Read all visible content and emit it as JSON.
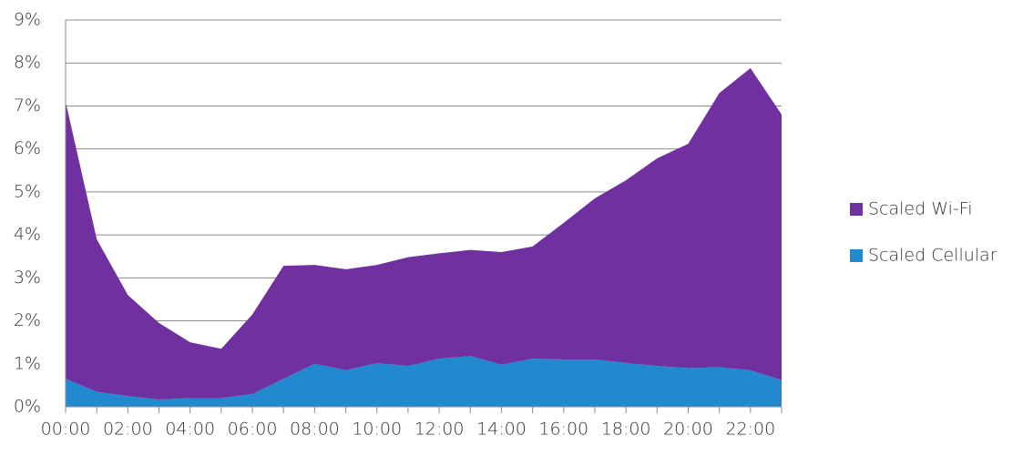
{
  "chart_data": {
    "type": "stacked_area",
    "categories": [
      "00:00",
      null,
      "02:00",
      null,
      "04:00",
      null,
      "06:00",
      null,
      "08:00",
      null,
      "10:00",
      null,
      "12:00",
      null,
      "14:00",
      null,
      "16:00",
      null,
      "18:00",
      null,
      "20:00",
      null,
      "22:00",
      null
    ],
    "series": [
      {
        "name": "Scaled Wi-Fi",
        "color": "#7030a0",
        "values": [
          6.45,
          3.55,
          2.35,
          1.78,
          1.3,
          1.15,
          1.85,
          2.63,
          2.3,
          2.35,
          2.28,
          2.53,
          2.45,
          2.47,
          2.62,
          2.61,
          3.18,
          3.75,
          4.25,
          4.83,
          5.22,
          6.38,
          7.03,
          6.18
        ]
      },
      {
        "name": "Scaled Cellular",
        "color": "#2089d0",
        "values": [
          0.65,
          0.35,
          0.25,
          0.17,
          0.2,
          0.2,
          0.3,
          0.65,
          1.0,
          0.85,
          1.02,
          0.95,
          1.12,
          1.18,
          0.98,
          1.12,
          1.1,
          1.1,
          1.02,
          0.95,
          0.9,
          0.92,
          0.85,
          0.62
        ]
      }
    ],
    "ylim": [
      0,
      9
    ],
    "yticks": [
      {
        "value": 0,
        "label": "0%"
      },
      {
        "value": 1,
        "label": "1%"
      },
      {
        "value": 2,
        "label": "2%"
      },
      {
        "value": 3,
        "label": "3%"
      },
      {
        "value": 4,
        "label": "4%"
      },
      {
        "value": 5,
        "label": "5%"
      },
      {
        "value": 6,
        "label": "6%"
      },
      {
        "value": 7,
        "label": "7%"
      },
      {
        "value": 8,
        "label": "8%"
      },
      {
        "value": 9,
        "label": "9%"
      }
    ],
    "grid": true,
    "legend": "right"
  }
}
